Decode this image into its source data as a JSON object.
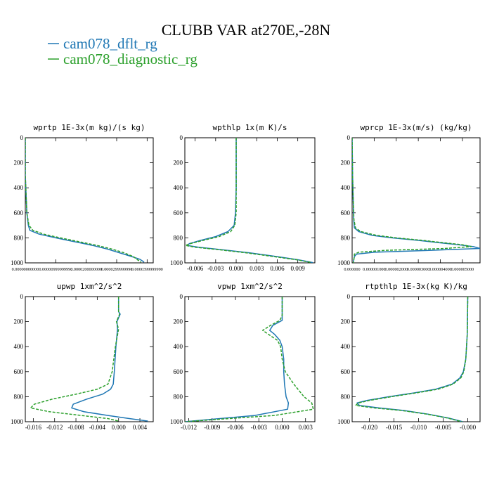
{
  "figure": {
    "title": "CLUBB VAR at270E,-28N",
    "legend": [
      {
        "label": "cam078_dflt_rg",
        "color": "#1f77b4"
      },
      {
        "label": "cam078_diagnostic_rg",
        "color": "#2ca02c"
      }
    ]
  },
  "chart_data": [
    {
      "type": "line",
      "title": "wprtp  1E-3x(m kg)/(s kg)",
      "xlim": [
        0.0,
        4.2e-05
      ],
      "ylim": [
        1000,
        0
      ],
      "xtick_values": [
        0.0,
        1e-05,
        2e-05,
        3e-05,
        4e-05
      ],
      "xtick_labels": [
        "0.00000000000",
        "0.00000999999990",
        "0.0000200000000",
        "0.0000299999990",
        "0.0000399999990"
      ],
      "ytick_values": [
        0,
        200,
        400,
        600,
        800,
        1000
      ],
      "ytick_labels": [
        "0",
        "200",
        "400",
        "600",
        "800",
        "1000"
      ],
      "y": [
        0,
        300,
        600,
        700,
        740,
        770,
        800,
        830,
        860,
        890,
        920,
        950,
        970,
        985,
        995
      ],
      "series": [
        {
          "name": "cam078_dflt_rg",
          "color": "#1f77b4",
          "dash": "",
          "values": [
            0,
            0,
            5e-07,
            1e-06,
            1.5e-06,
            4.5e-06,
            1e-05,
            1.6e-05,
            2.2e-05,
            2.7e-05,
            3.1e-05,
            3.5e-05,
            3.75e-05,
            3.85e-05,
            3.9e-05
          ]
        },
        {
          "name": "cam078_diagnostic_rg",
          "color": "#2ca02c",
          "dash": "4,2",
          "values": [
            0,
            0,
            5e-07,
            1.2e-06,
            2.5e-06,
            6e-06,
            1.15e-05,
            1.75e-05,
            2.35e-05,
            2.85e-05,
            3.25e-05,
            3.55e-05,
            3.65e-05,
            3.75e-05,
            3.8e-05
          ]
        }
      ]
    },
    {
      "type": "line",
      "title": "wpthlp  1x(m K)/s",
      "xlim": [
        -0.0075,
        0.0115
      ],
      "ylim": [
        1000,
        0
      ],
      "xtick_values": [
        -0.006,
        -0.003,
        0.0,
        0.003,
        0.006,
        0.009
      ],
      "xtick_labels": [
        "-0.006",
        "-0.003",
        "0.000",
        "0.003",
        "0.006",
        "0.009"
      ],
      "ytick_values": [
        0,
        200,
        400,
        600,
        800,
        1000
      ],
      "ytick_labels": [
        "0",
        "200",
        "400",
        "600",
        "800",
        "1000"
      ],
      "y": [
        0,
        200,
        400,
        600,
        700,
        750,
        790,
        820,
        845,
        860,
        875,
        895,
        920,
        950,
        975,
        990,
        998
      ],
      "series": [
        {
          "name": "cam078_dflt_rg",
          "color": "#1f77b4",
          "dash": "",
          "values": [
            0.0,
            0.0,
            0.0,
            -0.0001,
            -0.0003,
            -0.0012,
            -0.003,
            -0.0052,
            -0.0068,
            -0.0072,
            -0.0055,
            -0.002,
            0.002,
            0.006,
            0.009,
            0.0105,
            0.0112
          ]
        },
        {
          "name": "cam078_diagnostic_rg",
          "color": "#2ca02c",
          "dash": "4,2",
          "values": [
            0.0,
            0.0,
            0.0,
            0.0,
            -0.0002,
            -0.0008,
            -0.0025,
            -0.0048,
            -0.0066,
            -0.0074,
            -0.006,
            -0.0025,
            0.0015,
            0.0055,
            0.0088,
            0.0103,
            0.011
          ]
        }
      ]
    },
    {
      "type": "line",
      "title": "wprcp  1E-3x(m/s) (kg/kg)",
      "xlim": [
        0.0,
        5.8e-06
      ],
      "ylim": [
        1000,
        0
      ],
      "xtick_values": [
        0.0,
        1e-06,
        2e-06,
        3e-06,
        4e-06,
        5e-06
      ],
      "xtick_labels": [
        "0.000000",
        "0.000001000",
        "0.000002000",
        "0.000003000",
        "0.000004000",
        "0.000005000"
      ],
      "ytick_values": [
        0,
        200,
        400,
        600,
        800,
        1000
      ],
      "ytick_labels": [
        "0",
        "200",
        "400",
        "600",
        "800",
        "1000"
      ],
      "y": [
        0,
        300,
        500,
        650,
        720,
        750,
        780,
        800,
        820,
        840,
        855,
        870,
        885,
        900,
        915,
        930,
        950,
        1000
      ],
      "series": [
        {
          "name": "cam078_dflt_rg",
          "color": "#1f77b4",
          "dash": "",
          "values": [
            0.0,
            2e-08,
            5e-08,
            7e-08,
            1e-07,
            3e-07,
            9e-07,
            1.8e-06,
            3e-06,
            4e-06,
            4.8e-06,
            5.5e-06,
            5.8e-06,
            3.5e-06,
            1e-06,
            2e-07,
            1e-07,
            5e-08
          ]
        },
        {
          "name": "cam078_diagnostic_rg",
          "color": "#2ca02c",
          "dash": "4,2",
          "values": [
            0.0,
            2e-08,
            5e-08,
            8e-08,
            1.5e-07,
            4e-07,
            1.1e-06,
            2e-06,
            3.2e-06,
            4.2e-06,
            5e-06,
            5.4e-06,
            4.2e-06,
            1.5e-06,
            3e-07,
            1e-07,
            1e-07,
            5e-08
          ]
        }
      ]
    },
    {
      "type": "line",
      "title": "upwp  1xm^2/s^2",
      "xlim": [
        -0.0175,
        0.0065
      ],
      "ylim": [
        1000,
        0
      ],
      "xtick_values": [
        -0.016,
        -0.012,
        -0.008,
        -0.004,
        0.0,
        0.004
      ],
      "xtick_labels": [
        "-0.016",
        "-0.012",
        "-0.008",
        "-0.004",
        "0.000",
        "0.004"
      ],
      "ytick_values": [
        0,
        200,
        400,
        600,
        800,
        1000
      ],
      "ytick_labels": [
        "0",
        "200",
        "400",
        "600",
        "800",
        "1000"
      ],
      "y": [
        0,
        120,
        140,
        200,
        260,
        400,
        600,
        700,
        740,
        780,
        820,
        860,
        890,
        920,
        950,
        975,
        995
      ],
      "series": [
        {
          "name": "cam078_dflt_rg",
          "color": "#1f77b4",
          "dash": "",
          "values": [
            0.0,
            0.0,
            0.0003,
            -0.0003,
            -0.0002,
            -0.0005,
            -0.0008,
            -0.001,
            -0.0015,
            -0.003,
            -0.006,
            -0.0085,
            -0.0088,
            -0.0065,
            -0.002,
            0.002,
            0.0055
          ]
        },
        {
          "name": "cam078_diagnostic_rg",
          "color": "#2ca02c",
          "dash": "4,2",
          "values": [
            0.0,
            0.0,
            0.0002,
            -0.0004,
            0.0,
            -0.0006,
            -0.0012,
            -0.002,
            -0.004,
            -0.008,
            -0.0125,
            -0.0158,
            -0.0165,
            -0.013,
            -0.007,
            -0.002,
            0.0
          ]
        }
      ]
    },
    {
      "type": "line",
      "title": "vpwp  1xm^2/s^2",
      "xlim": [
        -0.0125,
        0.0042
      ],
      "ylim": [
        1000,
        0
      ],
      "xtick_values": [
        -0.012,
        -0.009,
        -0.006,
        -0.003,
        0.0,
        0.003
      ],
      "xtick_labels": [
        "-0.012",
        "-0.009",
        "-0.006",
        "-0.003",
        "0.000",
        "0.003"
      ],
      "ytick_values": [
        0,
        200,
        400,
        600,
        800,
        1000
      ],
      "ytick_labels": [
        "0",
        "200",
        "400",
        "600",
        "800",
        "1000"
      ],
      "y": [
        0,
        150,
        190,
        230,
        270,
        300,
        350,
        400,
        500,
        600,
        700,
        800,
        850,
        900,
        950,
        980,
        1000
      ],
      "series": [
        {
          "name": "cam078_dflt_rg",
          "color": "#1f77b4",
          "dash": "",
          "values": [
            0.0,
            0.0,
            0.0,
            -0.0012,
            -0.0016,
            -0.001,
            -0.0003,
            0.0,
            0.0002,
            0.0002,
            0.0003,
            0.0005,
            0.0008,
            0.0007,
            -0.0035,
            -0.009,
            -0.0125
          ]
        },
        {
          "name": "cam078_diagnostic_rg",
          "color": "#2ca02c",
          "dash": "4,2",
          "values": [
            0.0,
            0.0,
            -0.0003,
            -0.0015,
            -0.0025,
            -0.0018,
            -0.0006,
            -0.0002,
            0.0,
            0.0004,
            0.0015,
            0.0028,
            0.0038,
            0.004,
            -0.001,
            -0.008,
            -0.0125
          ]
        }
      ]
    },
    {
      "type": "line",
      "title": "rtpthlp  1E-3x(kg K)/kg",
      "xlim": [
        -0.0235,
        0.0025
      ],
      "ylim": [
        1000,
        0
      ],
      "xtick_values": [
        -0.02,
        -0.015,
        -0.01,
        -0.005,
        0.0
      ],
      "xtick_labels": [
        "-0.020",
        "-0.015",
        "-0.010",
        "-0.005",
        "-0.000"
      ],
      "ytick_values": [
        0,
        200,
        400,
        600,
        800,
        1000
      ],
      "ytick_labels": [
        "0",
        "200",
        "400",
        "600",
        "800",
        "1000"
      ],
      "y": [
        0,
        300,
        500,
        600,
        650,
        700,
        740,
        770,
        800,
        830,
        850,
        870,
        890,
        910,
        940,
        970,
        1000
      ],
      "series": [
        {
          "name": "cam078_dflt_rg",
          "color": "#1f77b4",
          "dash": "",
          "values": [
            0.0,
            -0.0001,
            -0.0004,
            -0.0009,
            -0.0016,
            -0.0032,
            -0.0065,
            -0.011,
            -0.016,
            -0.0205,
            -0.0225,
            -0.022,
            -0.018,
            -0.013,
            -0.008,
            -0.004,
            -0.001
          ]
        },
        {
          "name": "cam078_diagnostic_rg",
          "color": "#2ca02c",
          "dash": "4,2",
          "values": [
            0.0,
            -0.0001,
            -0.0004,
            -0.0008,
            -0.0014,
            -0.003,
            -0.006,
            -0.0105,
            -0.0155,
            -0.02,
            -0.0222,
            -0.0228,
            -0.019,
            -0.0135,
            -0.0082,
            -0.0042,
            -0.0012
          ]
        }
      ]
    }
  ]
}
